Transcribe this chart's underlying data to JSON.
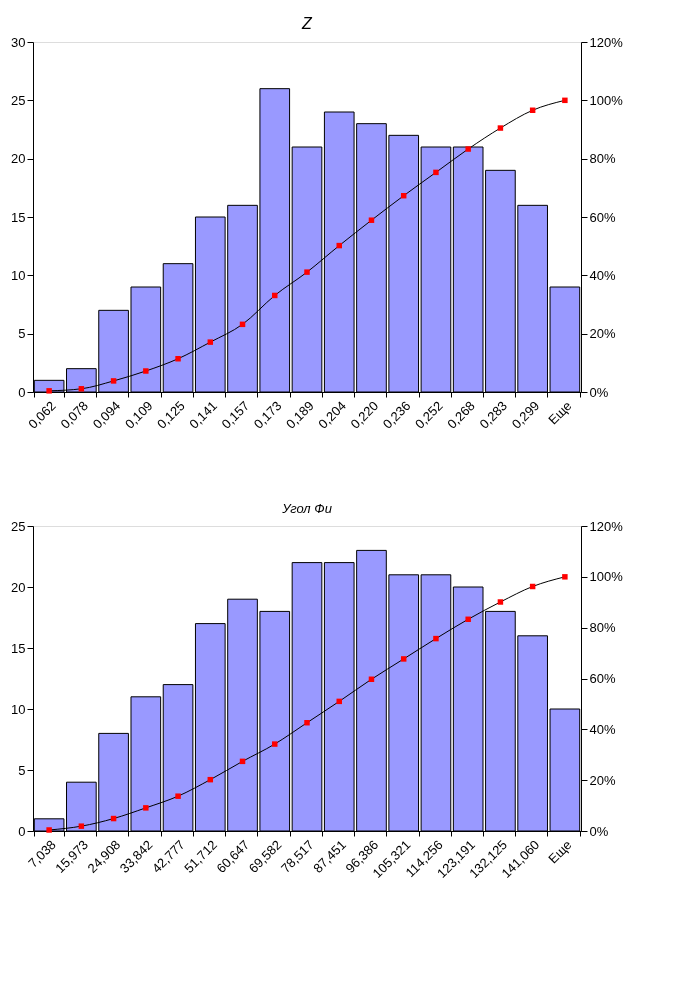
{
  "chart_data": [
    {
      "type": "bar",
      "title": "Z",
      "categories": [
        "0,062",
        "0,078",
        "0,094",
        "0,109",
        "0,125",
        "0,141",
        "0,157",
        "0,173",
        "0,189",
        "0,204",
        "0,220",
        "0,236",
        "0,252",
        "0,268",
        "0,283",
        "0,299",
        "Еще"
      ],
      "series": [
        {
          "type": "bar",
          "color": "#9999ff",
          "values": [
            1,
            2,
            7,
            9,
            11,
            15,
            16,
            26,
            21,
            24,
            23,
            22,
            21,
            21,
            19,
            16,
            9
          ]
        },
        {
          "type": "line",
          "axis": "y2",
          "color": "#000000",
          "marker": "square",
          "line_style": "solid",
          "colors": [
            "#ff0000",
            "#ff0000",
            "#ff0000",
            "#ff0000",
            "#ff0000",
            "#ff0000",
            "#ff0000",
            "#ff0000",
            "#ff0000",
            "#ff0000",
            "#ff0000",
            "#ff0000",
            "#ff0000",
            "#ff0000",
            "#ff0000",
            "#ff0000",
            "#ff0000"
          ],
          "values": [
            0.4,
            1.1,
            3.8,
            7.2,
            11.4,
            17.1,
            23.2,
            33.1,
            41.1,
            50.2,
            58.9,
            67.3,
            75.3,
            83.3,
            90.5,
            96.6,
            100
          ]
        }
      ],
      "ylim": [
        0,
        30
      ],
      "yticks": [
        0,
        5,
        10,
        15,
        20,
        25,
        30
      ],
      "y2lim": [
        0,
        120
      ],
      "y2ticks": [
        {
          "value": 0,
          "label": "0%"
        },
        {
          "value": 20,
          "label": "20%"
        },
        {
          "value": 40,
          "label": "40%"
        },
        {
          "value": 60,
          "label": "60%"
        },
        {
          "value": 80,
          "label": "80%"
        },
        {
          "value": 100,
          "label": "100%"
        },
        {
          "value": 120,
          "label": "120%"
        }
      ],
      "grid": false
    },
    {
      "type": "bar",
      "title": "Угол Фи",
      "categories": [
        "7,038",
        "15,973",
        "24,908",
        "33,842",
        "42,777",
        "51,712",
        "60,647",
        "69,582",
        "78,517",
        "87,451",
        "96,386",
        "105,321",
        "114,256",
        "123,191",
        "132,125",
        "141,060",
        "Еще"
      ],
      "series": [
        {
          "type": "bar",
          "color": "#9999ff",
          "values": [
            1,
            4,
            8,
            11,
            12,
            17,
            19,
            18,
            22,
            22,
            23,
            21,
            21,
            20,
            18,
            16,
            10
          ]
        },
        {
          "type": "line",
          "axis": "y2",
          "color": "#000000",
          "marker": "square",
          "line_style": "solid",
          "colors": [
            "#ff0000",
            "#ff0000",
            "#ff0000",
            "#ff0000",
            "#ff0000",
            "#ff0000",
            "#ff0000",
            "#ff0000",
            "#ff0000",
            "#ff0000",
            "#ff0000",
            "#ff0000",
            "#ff0000",
            "#ff0000",
            "#ff0000",
            "#ff0000",
            "#ff0000"
          ],
          "values": [
            0.4,
            1.9,
            4.9,
            9.1,
            13.7,
            20.2,
            27.4,
            34.2,
            42.6,
            51.0,
            59.7,
            67.7,
            75.7,
            83.3,
            90.1,
            96.2,
            100
          ]
        }
      ],
      "ylim": [
        0,
        25
      ],
      "yticks": [
        0,
        5,
        10,
        15,
        20,
        25
      ],
      "y2lim": [
        0,
        120
      ],
      "y2ticks": [
        {
          "value": 0,
          "label": "0%"
        },
        {
          "value": 20,
          "label": "20%"
        },
        {
          "value": 40,
          "label": "40%"
        },
        {
          "value": 60,
          "label": "60%"
        },
        {
          "value": 80,
          "label": "80%"
        },
        {
          "value": 100,
          "label": "100%"
        },
        {
          "value": 120,
          "label": "120%"
        }
      ],
      "grid": false
    }
  ]
}
